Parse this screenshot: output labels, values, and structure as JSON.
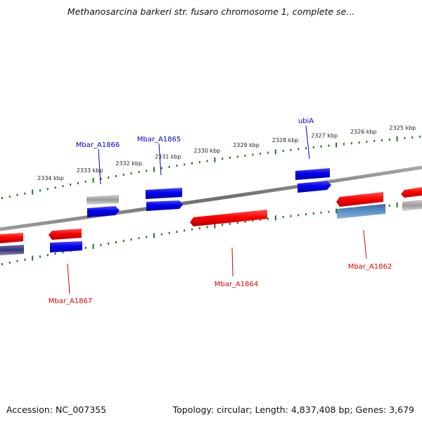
{
  "header": {
    "title": "Methanosarcina barkeri str. fusaro chromosome 1, complete se..."
  },
  "footer": {
    "accession": "Accession: NC_007355",
    "summary": "Topology: circular; Length: 4,837,408 bp; Genes: 3,679"
  },
  "ruler": {
    "tick_labels": [
      "2334 kbp",
      "2333 kbp",
      "2332 kbp",
      "2331 kbp",
      "2330 kbp",
      "2329 kbp",
      "2328 kbp",
      "2327 kbp",
      "2326 kbp",
      "2325 kbp"
    ],
    "tick_color": "#1a7a1a"
  },
  "genes": [
    {
      "name": "Mbar_A1867",
      "strand": "reverse",
      "color": "#dd0000"
    },
    {
      "name": "Mbar_A1866",
      "strand": "forward",
      "color": "#0000cc"
    },
    {
      "name": "Mbar_A1865",
      "strand": "forward",
      "color": "#0000cc"
    },
    {
      "name": "Mbar_A1864",
      "strand": "reverse",
      "color": "#dd0000"
    },
    {
      "name": "ubiA",
      "strand": "forward",
      "color": "#0000cc"
    },
    {
      "name": "Mbar_A1862",
      "strand": "reverse",
      "color": "#dd0000"
    }
  ],
  "colors": {
    "forward": "#0000ee",
    "reverse": "#ee0000",
    "backbone": "#7a7a7a",
    "other_gray": "#aaaaaa",
    "dark_blue": "#3a3a8a",
    "steel_blue": "#4a7fb8"
  }
}
